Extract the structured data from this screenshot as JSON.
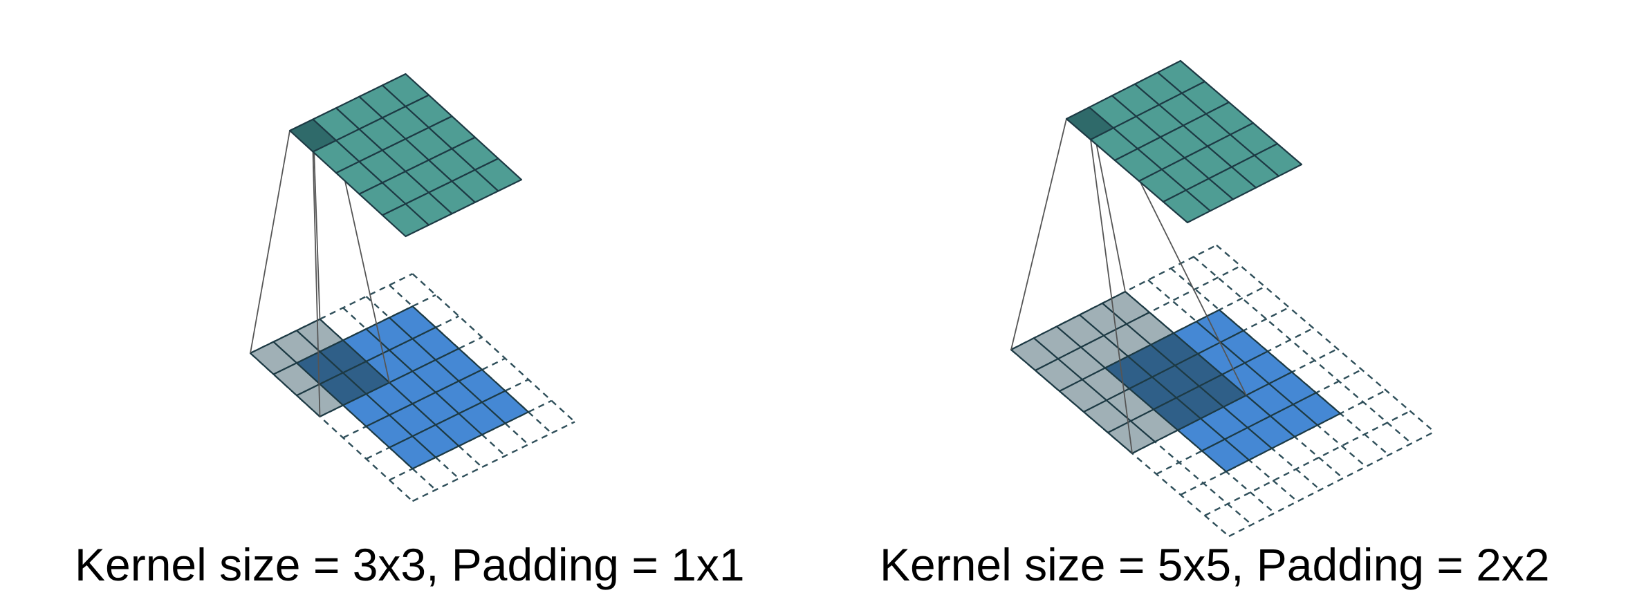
{
  "panels": [
    {
      "caption": "Kernel size = 3x3, Padding = 1x1",
      "kernel": 3,
      "padding": 1,
      "input_size": 5,
      "output_size": 5
    },
    {
      "caption": "Kernel size = 5x5, Padding = 2x2",
      "kernel": 5,
      "padding": 2,
      "input_size": 5,
      "output_size": 5
    }
  ],
  "colors": {
    "output_fill": "#4f9d94",
    "output_highlight": "#2f6a6a",
    "input_fill": "#4588d4",
    "kernel_fill": "#a0b0b6",
    "kernel_overlap": "#2f5f88",
    "grid_line": "#1d3a44",
    "padding_line": "#2f4f5a",
    "projection_line": "#555555"
  }
}
